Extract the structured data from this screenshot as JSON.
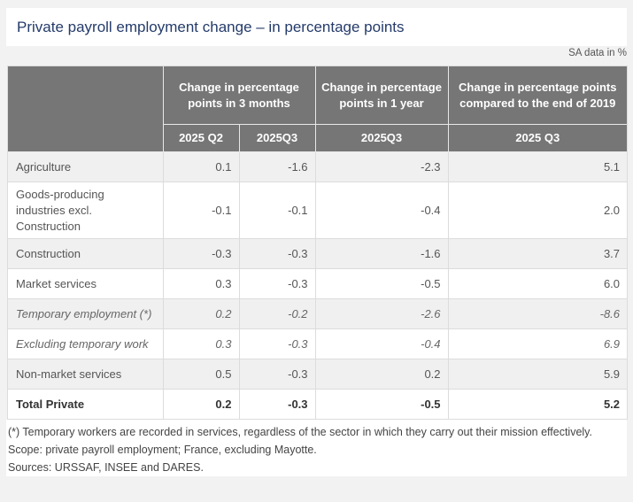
{
  "title": "Private payroll employment change – in percentage points",
  "unit_note": "SA data in %",
  "table": {
    "group_headers": [
      "",
      "Change in percentage points in 3 months",
      "Change in percentage points in 1 year",
      "Change in percentage points compared to the end of 2019"
    ],
    "sub_headers": [
      "2025 Q2",
      "2025Q3",
      "2025Q3",
      "2025 Q3"
    ],
    "rows": [
      {
        "label": "Agriculture",
        "values": [
          "0.1",
          "-1.6",
          "-2.3",
          "5.1"
        ]
      },
      {
        "label": "Goods-producing industries excl. Construction",
        "values": [
          "-0.1",
          "-0.1",
          "-0.4",
          "2.0"
        ]
      },
      {
        "label": "Construction",
        "values": [
          "-0.3",
          "-0.3",
          "-1.6",
          "3.7"
        ]
      },
      {
        "label": "Market services",
        "values": [
          "0.3",
          "-0.3",
          "-0.5",
          "6.0"
        ]
      },
      {
        "label": "Temporary employment (*)",
        "values": [
          "0.2",
          "-0.2",
          "-2.6",
          "-8.6"
        ]
      },
      {
        "label": "Excluding temporary work",
        "values": [
          "0.3",
          "-0.3",
          "-0.4",
          "6.9"
        ]
      },
      {
        "label": "Non-market services",
        "values": [
          "0.5",
          "-0.3",
          "0.2",
          "5.9"
        ]
      },
      {
        "label": "Total Private",
        "values": [
          "0.2",
          "-0.3",
          "-0.5",
          "5.2"
        ]
      }
    ]
  },
  "notes": [
    "(*) Temporary workers are recorded in services, regardless of the sector in which they carry out their mission effectively.",
    "Scope: private payroll employment; France, excluding Mayotte.",
    "Sources: URSSAF, INSEE and DARES."
  ],
  "colors": {
    "title": "#243b6a",
    "header_bg": "#767676",
    "header_text": "#ffffff",
    "row_alt_bg": "#f0f0f0",
    "page_bg": "#f2f2f2"
  }
}
